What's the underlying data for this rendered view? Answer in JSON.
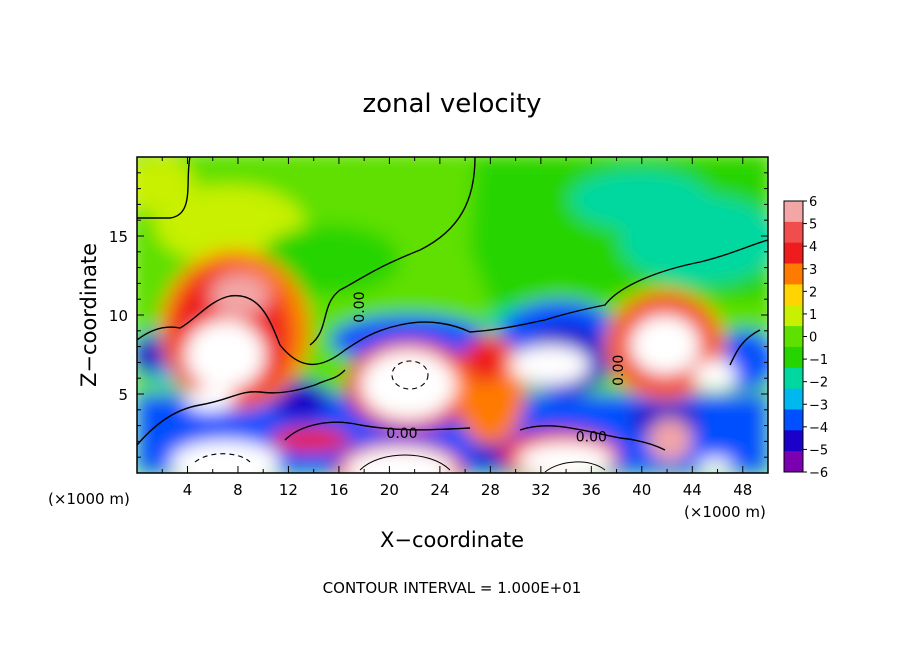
{
  "chart_data": {
    "type": "heatmap",
    "title": "zonal velocity",
    "xlabel": "X−coordinate",
    "ylabel": "Z−coordinate",
    "x_unit_left": "(×1000 m)",
    "x_unit_right": "(×1000 m)",
    "xlim": [
      0,
      50
    ],
    "ylim": [
      0,
      20
    ],
    "x_ticks": [
      4,
      8,
      12,
      16,
      20,
      24,
      28,
      32,
      36,
      40,
      44,
      48
    ],
    "y_ticks": [
      5,
      10,
      15
    ],
    "colorbar": {
      "ticks": [
        6,
        5,
        4,
        3,
        2,
        1,
        0,
        -1,
        -2,
        -3,
        -4,
        -5,
        -6
      ],
      "tick_labels": [
        "6",
        "5",
        "4",
        "3",
        "2",
        "1",
        "0",
        "−1",
        "−2",
        "−3",
        "−4",
        "−5",
        "−6"
      ],
      "colors": [
        "#f2a6a6",
        "#f24d4d",
        "#ee1c1c",
        "#ff7a00",
        "#ffd400",
        "#c8f000",
        "#5ee000",
        "#26d400",
        "#00d8a0",
        "#00b8f0",
        "#0050ff",
        "#1a00c8",
        "#7a00b0"
      ],
      "zero_color": "#5ee000",
      "over_color": "#ffffff"
    },
    "contour_labels": [
      {
        "text": "0.00",
        "x": 21,
        "z": 2.2
      },
      {
        "text": "0.00",
        "x": 36,
        "z": 2.0
      },
      {
        "text": "0.00",
        "x": 18,
        "z": 10.5
      },
      {
        "text": "0.00",
        "x": 38.5,
        "z": 6.5
      }
    ],
    "footer": "CONTOUR INTERVAL = 1.000E+01"
  }
}
